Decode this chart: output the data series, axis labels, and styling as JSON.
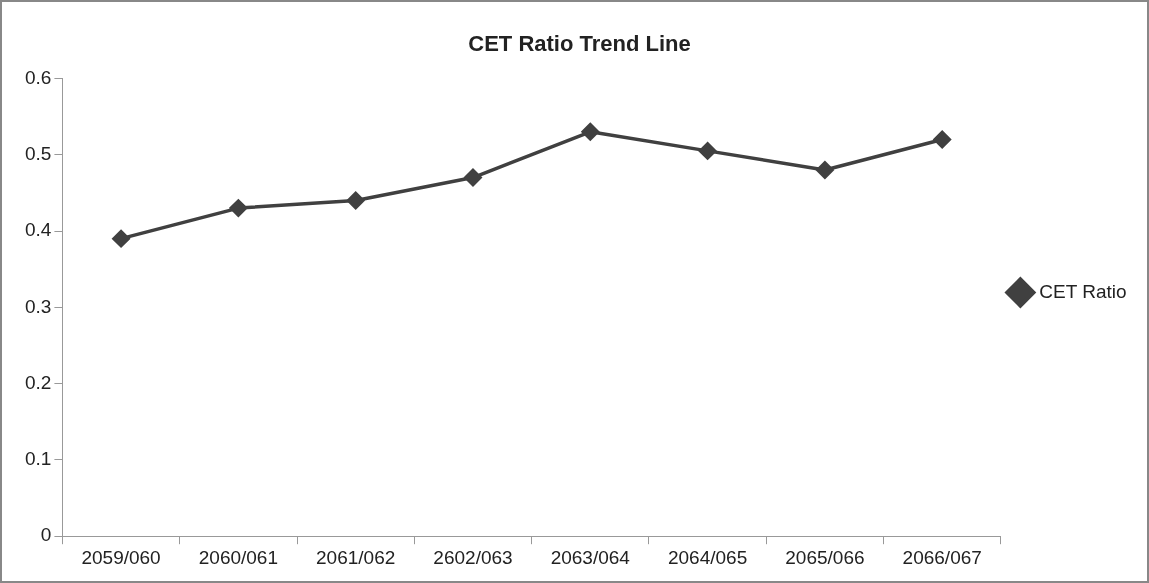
{
  "chart_data": {
    "type": "line",
    "title": "CET Ratio Trend Line",
    "categories": [
      "2059/060",
      "2060/061",
      "2061/062",
      "2602/063",
      "2063/064",
      "2064/065",
      "2065/066",
      "2066/067"
    ],
    "series": [
      {
        "name": "CET Ratio",
        "color": "#404040",
        "values": [
          0.39,
          0.43,
          0.44,
          0.47,
          0.53,
          0.505,
          0.48,
          0.52
        ]
      }
    ],
    "ylim": [
      0,
      0.6
    ],
    "yticks": [
      0,
      0.1,
      0.2,
      0.3,
      0.4,
      0.5,
      0.6
    ],
    "legend": "right",
    "marker": "diamond",
    "line_style": "solid",
    "grid": false
  }
}
